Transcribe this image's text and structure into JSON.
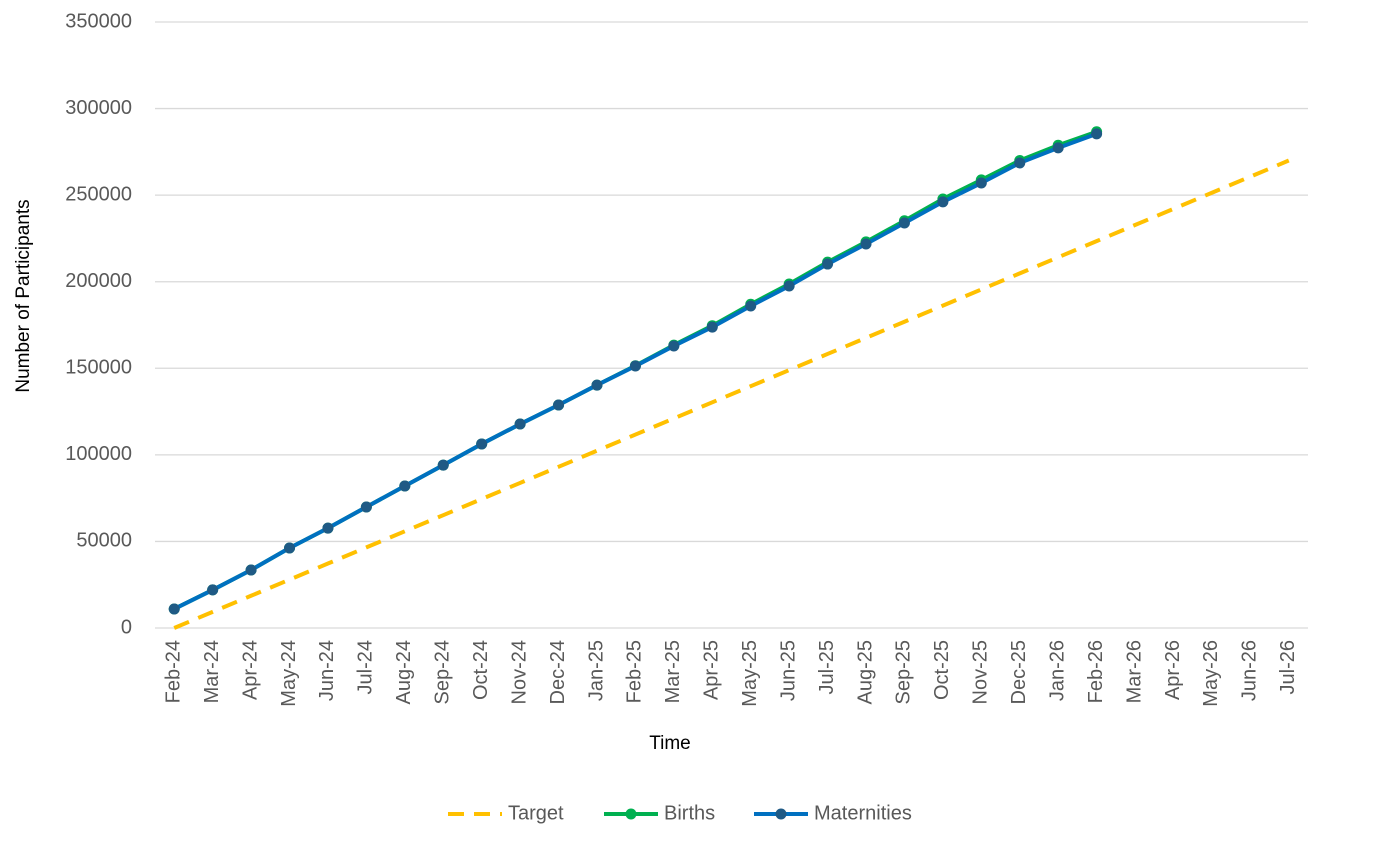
{
  "chart_data": {
    "type": "line",
    "x_label": "Time",
    "y_label": "Number of Participants",
    "categories": [
      "Feb-24",
      "Mar-24",
      "Apr-24",
      "May-24",
      "Jun-24",
      "Jul-24",
      "Aug-24",
      "Sep-24",
      "Oct-24",
      "Nov-24",
      "Dec-24",
      "Jan-25",
      "Feb-25",
      "Mar-25",
      "Apr-25",
      "May-25",
      "Jun-25",
      "Jul-25",
      "Aug-25",
      "Sep-25",
      "Oct-25",
      "Nov-25",
      "Dec-25",
      "Jan-26",
      "Feb-26",
      "Mar-26",
      "Apr-26",
      "May-26",
      "Jun-26",
      "Jul-26"
    ],
    "series": [
      {
        "name": "Target",
        "color": "#ffc000",
        "dashed": true,
        "markers": false,
        "values": [
          0,
          9310,
          18620,
          27930,
          37240,
          46550,
          55860,
          65170,
          74480,
          83790,
          93100,
          102410,
          111720,
          121030,
          130340,
          139650,
          148960,
          158270,
          167580,
          176890,
          186200,
          195510,
          204820,
          214130,
          223440,
          232750,
          242060,
          251370,
          260680,
          269990
        ]
      },
      {
        "name": "Births",
        "color": "#00b050",
        "marker_color": "#00b050",
        "dashed": false,
        "markers": true,
        "values": [
          11000,
          22000,
          33500,
          46200,
          57700,
          69900,
          82000,
          94100,
          106300,
          117800,
          128800,
          140300,
          151500,
          163400,
          174600,
          187000,
          198700,
          211300,
          223000,
          235200,
          247800,
          258800,
          270000,
          278800,
          286600,
          null,
          null,
          null,
          null,
          null
        ]
      },
      {
        "name": "Maternities",
        "color": "#0070c0",
        "marker_color": "#1f5a85",
        "dashed": false,
        "markers": true,
        "values": [
          11000,
          22000,
          33500,
          46200,
          57700,
          69900,
          82000,
          94100,
          106300,
          117800,
          128800,
          140300,
          151300,
          162900,
          173800,
          186000,
          197500,
          210200,
          221800,
          233900,
          246100,
          257000,
          268600,
          277300,
          285400,
          null,
          null,
          null,
          null,
          null
        ]
      }
    ],
    "ylim": [
      0,
      350000
    ],
    "yticks": [
      0,
      50000,
      100000,
      150000,
      200000,
      250000,
      300000,
      350000
    ],
    "grid": true,
    "legend": "bottom"
  }
}
